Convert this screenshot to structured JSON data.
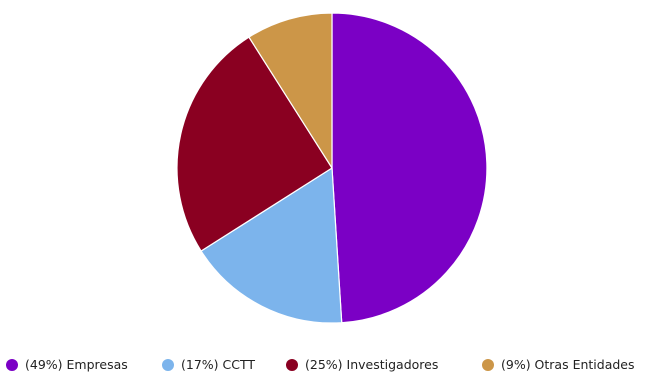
{
  "chart_data": {
    "type": "pie",
    "title": "",
    "slices": [
      {
        "label": "Empresas",
        "value": 49,
        "legend_text": "(49%) Empresas",
        "color": "#7b00c5"
      },
      {
        "label": "CCTT",
        "value": 17,
        "legend_text": "(17%) CCTT",
        "color": "#7cb4ec"
      },
      {
        "label": "Investigadores",
        "value": 25,
        "legend_text": "(25%) Investigadores",
        "color": "#8a0021"
      },
      {
        "label": "Otras Entidades",
        "value": 9,
        "legend_text": "(9%) Otras Entidades",
        "color": "#cc9648"
      }
    ],
    "legend_position": "bottom",
    "start": "top",
    "direction": "clockwise"
  }
}
